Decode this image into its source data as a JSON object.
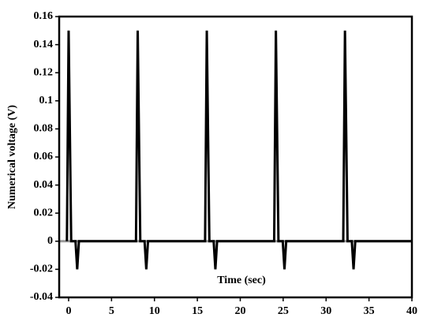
{
  "chart_data": {
    "type": "line",
    "x_label": "Time (sec)",
    "y_label": "Numerical voltage (V)",
    "series": [
      {
        "color": "#000000",
        "x": [
          -0.2,
          0,
          0.3,
          0.8,
          1,
          1.2,
          7.85,
          8.05,
          8.35,
          8.85,
          9.05,
          9.25,
          15.9,
          16.1,
          16.4,
          16.9,
          17.1,
          17.3,
          23.95,
          24.15,
          24.45,
          24.95,
          25.15,
          25.35,
          32,
          32.2,
          32.5,
          33,
          33.2,
          33.4,
          40
        ],
        "values": [
          0,
          0.15,
          0,
          0,
          -0.02,
          0,
          0,
          0.15,
          0,
          0,
          -0.02,
          0,
          0,
          0.15,
          0,
          0,
          -0.02,
          0,
          0,
          0.15,
          0,
          0,
          -0.02,
          0,
          0,
          0.15,
          0,
          0,
          -0.02,
          0,
          0
        ]
      }
    ],
    "xlim": [
      -1.1,
      40
    ],
    "xticks": [
      0,
      5,
      10,
      15,
      20,
      25,
      30,
      35,
      40
    ],
    "ylim": [
      -0.04,
      0.16
    ],
    "yticks": [
      -0.04,
      -0.02,
      0,
      0.02,
      0.04,
      0.06,
      0.08,
      0.1,
      0.12,
      0.14,
      0.16
    ],
    "zero_line_color": "#999999"
  }
}
